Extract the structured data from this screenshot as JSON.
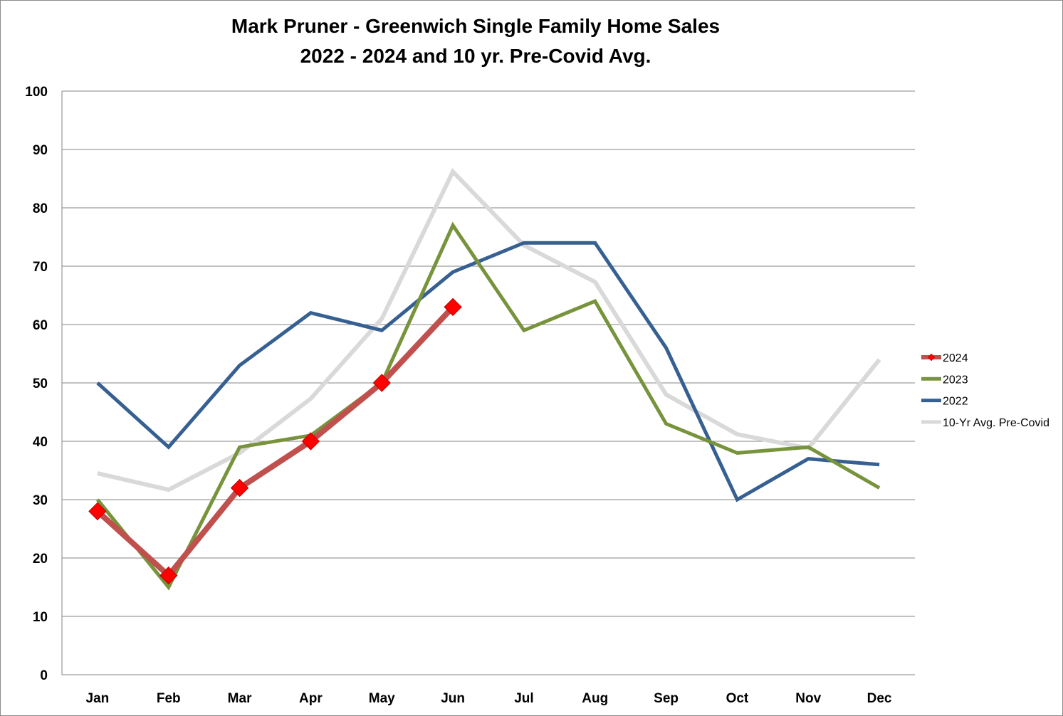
{
  "chart_data": {
    "type": "line",
    "title_line1": "Mark Pruner - Greenwich Single Family Home Sales",
    "title_line2": "2022 - 2024 and 10 yr. Pre-Covid Avg.",
    "xlabel": "",
    "ylabel": "",
    "categories": [
      "Jan",
      "Feb",
      "Mar",
      "Apr",
      "May",
      "Jun",
      "Jul",
      "Aug",
      "Sep",
      "Oct",
      "Nov",
      "Dec"
    ],
    "ylim": [
      0,
      100
    ],
    "yticks": [
      0,
      10,
      20,
      30,
      40,
      50,
      60,
      70,
      80,
      90,
      100
    ],
    "grid": true,
    "legend_position": "right",
    "series": [
      {
        "name": "10-Yr Avg. Pre-Covid",
        "color": "#d9d9d9",
        "marker": "none",
        "values": [
          34.5,
          31.7,
          38,
          47.3,
          61,
          86.2,
          73.6,
          67.3,
          48,
          41.2,
          38.8,
          54
        ]
      },
      {
        "name": "2022",
        "color": "#376092",
        "marker": "none",
        "values": [
          50,
          39,
          53,
          62,
          59,
          69,
          74,
          74,
          56,
          30,
          37,
          36
        ]
      },
      {
        "name": "2023",
        "color": "#77933c",
        "marker": "none",
        "values": [
          30,
          15,
          39,
          41,
          50,
          77,
          59,
          64,
          43,
          38,
          39,
          32
        ]
      },
      {
        "name": "2024",
        "color": "#c0504d",
        "marker": "diamond",
        "marker_color": "#ff0000",
        "values": [
          28,
          17,
          32,
          40,
          50,
          63,
          null,
          null,
          null,
          null,
          null,
          null
        ]
      }
    ],
    "legend_order": [
      "2024",
      "2023",
      "2022",
      "10-Yr Avg. Pre-Covid"
    ]
  }
}
